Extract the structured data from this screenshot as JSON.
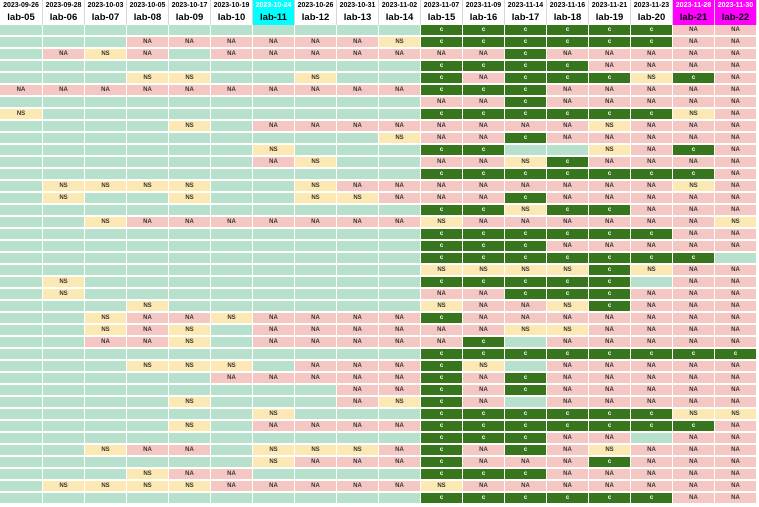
{
  "colors": {
    "empty": "#b7e1cd",
    "NA": "#f4c7c3",
    "NS": "#fce8b2",
    "complete": "#38761d",
    "header_highlight_cyan": "#00ffff",
    "header_highlight_magenta": "#ff00ff"
  },
  "columns": [
    {
      "date": "2023-09-26",
      "lab": "lab-05",
      "highlight": ""
    },
    {
      "date": "2023-09-28",
      "lab": "lab-06",
      "highlight": ""
    },
    {
      "date": "2023-10-03",
      "lab": "lab-07",
      "highlight": ""
    },
    {
      "date": "2023-10-05",
      "lab": "lab-08",
      "highlight": ""
    },
    {
      "date": "2023-10-17",
      "lab": "lab-09",
      "highlight": ""
    },
    {
      "date": "2023-10-19",
      "lab": "lab-10",
      "highlight": ""
    },
    {
      "date": "2023-10-24",
      "lab": "lab-11",
      "highlight": "cyan"
    },
    {
      "date": "2023-10-26",
      "lab": "lab-12",
      "highlight": ""
    },
    {
      "date": "2023-10-31",
      "lab": "lab-13",
      "highlight": ""
    },
    {
      "date": "2023-11-02",
      "lab": "lab-14",
      "highlight": ""
    },
    {
      "date": "2023-11-07",
      "lab": "lab-15",
      "highlight": ""
    },
    {
      "date": "2023-11-09",
      "lab": "lab-16",
      "highlight": ""
    },
    {
      "date": "2023-11-14",
      "lab": "lab-17",
      "highlight": ""
    },
    {
      "date": "2023-11-16",
      "lab": "lab-18",
      "highlight": ""
    },
    {
      "date": "2023-11-21",
      "lab": "lab-19",
      "highlight": ""
    },
    {
      "date": "2023-11-23",
      "lab": "lab-20",
      "highlight": ""
    },
    {
      "date": "2023-11-28",
      "lab": "lab-21",
      "highlight": "magenta"
    },
    {
      "date": "2023-11-30",
      "lab": "lab-22",
      "highlight": "magenta"
    }
  ],
  "rows": [
    [
      "",
      "",
      "",
      "",
      "",
      "",
      "",
      "",
      "",
      "",
      "c",
      "c",
      "c",
      "c",
      "c",
      "c",
      "NA",
      "NA"
    ],
    [
      "",
      "",
      "",
      "NA",
      "NA",
      "NA",
      "NA",
      "NA",
      "NA",
      "NS",
      "c",
      "c",
      "c",
      "c",
      "c",
      "c",
      "NA",
      "NA"
    ],
    [
      "",
      "NA",
      "NS",
      "NA",
      "",
      "NA",
      "NA",
      "NA",
      "NA",
      "NA",
      "NA",
      "NA",
      "c",
      "NA",
      "NA",
      "NA",
      "NA",
      "NA"
    ],
    [
      "",
      "",
      "",
      "",
      "",
      "",
      "",
      "",
      "",
      "",
      "c",
      "c",
      "c",
      "c",
      "NA",
      "NA",
      "NA",
      "NA"
    ],
    [
      "",
      "",
      "",
      "NS",
      "NS",
      "",
      "",
      "NS",
      "",
      "",
      "c",
      "NA",
      "c",
      "c",
      "c",
      "NS",
      "c",
      "NA"
    ],
    [
      "NA",
      "NA",
      "NA",
      "NA",
      "NA",
      "NA",
      "NA",
      "NA",
      "NA",
      "NA",
      "c",
      "c",
      "c",
      "NA",
      "NA",
      "NA",
      "NA",
      "NA"
    ],
    [
      "",
      "",
      "",
      "",
      "",
      "",
      "",
      "",
      "",
      "",
      "NA",
      "NA",
      "c",
      "NA",
      "NA",
      "NA",
      "NA",
      "NA"
    ],
    [
      "NS",
      "",
      "",
      "",
      "",
      "",
      "",
      "",
      "",
      "",
      "c",
      "c",
      "c",
      "c",
      "c",
      "c",
      "NS",
      "NA"
    ],
    [
      "",
      "",
      "",
      "",
      "NS",
      "",
      "NA",
      "NA",
      "NA",
      "NA",
      "NA",
      "NA",
      "NA",
      "NA",
      "NS",
      "NA",
      "NA",
      "NA"
    ],
    [
      "",
      "",
      "",
      "",
      "",
      "",
      "",
      "",
      "",
      "NS",
      "NA",
      "NA",
      "c",
      "NA",
      "NA",
      "NA",
      "NA",
      "NA"
    ],
    [
      "",
      "",
      "",
      "",
      "",
      "",
      "NS",
      "",
      "",
      "",
      "c",
      "c",
      "",
      "",
      "NS",
      "NA",
      "c",
      "NA"
    ],
    [
      "",
      "",
      "",
      "",
      "",
      "",
      "NA",
      "NS",
      "",
      "",
      "NA",
      "NA",
      "NS",
      "c",
      "NA",
      "NA",
      "NA",
      "NA"
    ],
    [
      "",
      "",
      "",
      "",
      "",
      "",
      "",
      "",
      "",
      "",
      "c",
      "c",
      "c",
      "c",
      "c",
      "c",
      "c",
      "NA"
    ],
    [
      "",
      "NS",
      "NS",
      "NS",
      "NS",
      "",
      "",
      "NS",
      "NA",
      "NA",
      "NA",
      "NA",
      "NA",
      "NA",
      "NA",
      "NA",
      "NS",
      "NA"
    ],
    [
      "",
      "NS",
      "",
      "",
      "NS",
      "",
      "",
      "NS",
      "NS",
      "NA",
      "NA",
      "NA",
      "c",
      "NA",
      "NA",
      "NA",
      "NA",
      "NA"
    ],
    [
      "",
      "",
      "",
      "",
      "",
      "",
      "",
      "",
      "",
      "",
      "c",
      "c",
      "NS",
      "c",
      "c",
      "NA",
      "NA",
      "NA"
    ],
    [
      "",
      "",
      "NS",
      "NA",
      "NA",
      "NA",
      "NA",
      "NA",
      "NA",
      "NA",
      "NS",
      "NA",
      "NA",
      "NA",
      "NA",
      "NA",
      "NA",
      "NS"
    ],
    [
      "",
      "",
      "",
      "",
      "",
      "",
      "",
      "",
      "",
      "",
      "c",
      "c",
      "c",
      "c",
      "c",
      "c",
      "NA",
      "NA"
    ],
    [
      "",
      "",
      "",
      "",
      "",
      "",
      "",
      "",
      "",
      "",
      "c",
      "c",
      "c",
      "NA",
      "NA",
      "NA",
      "NA",
      "NA"
    ],
    [
      "",
      "",
      "",
      "",
      "",
      "",
      "",
      "",
      "",
      "",
      "c",
      "c",
      "c",
      "c",
      "c",
      "c",
      "c",
      ""
    ],
    [
      "",
      "",
      "",
      "",
      "",
      "",
      "",
      "",
      "",
      "",
      "NS",
      "NS",
      "NS",
      "NS",
      "c",
      "NS",
      "NA",
      "NA"
    ],
    [
      "",
      "NS",
      "",
      "",
      "",
      "",
      "",
      "",
      "",
      "",
      "c",
      "c",
      "c",
      "c",
      "c",
      "",
      "NA",
      "NA"
    ],
    [
      "",
      "NS",
      "",
      "",
      "",
      "",
      "",
      "",
      "",
      "",
      "NA",
      "NA",
      "c",
      "c",
      "c",
      "NA",
      "NA",
      "NA"
    ],
    [
      "",
      "",
      "",
      "NS",
      "",
      "",
      "",
      "",
      "",
      "",
      "NS",
      "NA",
      "NA",
      "NS",
      "c",
      "NA",
      "NA",
      "NA"
    ],
    [
      "",
      "",
      "NS",
      "NA",
      "NA",
      "NS",
      "NA",
      "NA",
      "NA",
      "NA",
      "c",
      "NA",
      "NA",
      "NA",
      "NA",
      "NA",
      "NA",
      "NA"
    ],
    [
      "",
      "",
      "NS",
      "NA",
      "NS",
      "",
      "NA",
      "NA",
      "NA",
      "NA",
      "NA",
      "NA",
      "NS",
      "NS",
      "NA",
      "NA",
      "NA",
      "NA"
    ],
    [
      "",
      "",
      "NA",
      "NA",
      "NS",
      "",
      "NA",
      "NA",
      "NA",
      "NA",
      "NA",
      "c",
      "",
      "NA",
      "NA",
      "NA",
      "NA",
      "NA"
    ],
    [
      "",
      "",
      "",
      "",
      "",
      "",
      "",
      "",
      "",
      "",
      "c",
      "c",
      "c",
      "c",
      "c",
      "c",
      "c",
      "c"
    ],
    [
      "",
      "",
      "",
      "NS",
      "NS",
      "NS",
      "",
      "NA",
      "NA",
      "NA",
      "c",
      "NS",
      "",
      "NA",
      "NA",
      "NA",
      "NA",
      "NA"
    ],
    [
      "",
      "",
      "",
      "",
      "",
      "NA",
      "NA",
      "NA",
      "NA",
      "NA",
      "c",
      "NA",
      "c",
      "NA",
      "NA",
      "NA",
      "NA",
      "NA"
    ],
    [
      "",
      "",
      "",
      "",
      "",
      "",
      "",
      "",
      "NA",
      "NA",
      "c",
      "NA",
      "c",
      "NA",
      "NA",
      "NA",
      "NA",
      "NA"
    ],
    [
      "",
      "",
      "",
      "",
      "NS",
      "",
      "",
      "",
      "NA",
      "NS",
      "c",
      "NA",
      "",
      "NA",
      "NA",
      "NA",
      "NA",
      "NA"
    ],
    [
      "",
      "",
      "",
      "",
      "",
      "",
      "NS",
      "",
      "",
      "",
      "c",
      "c",
      "c",
      "c",
      "c",
      "c",
      "NS",
      "NS"
    ],
    [
      "",
      "",
      "",
      "",
      "NS",
      "",
      "NA",
      "NA",
      "NA",
      "NA",
      "c",
      "c",
      "c",
      "c",
      "c",
      "c",
      "c",
      "NA"
    ],
    [
      "",
      "",
      "",
      "",
      "",
      "",
      "",
      "",
      "",
      "",
      "c",
      "c",
      "c",
      "NA",
      "NA",
      "",
      "NA",
      "NA"
    ],
    [
      "",
      "",
      "NS",
      "NA",
      "NA",
      "",
      "NS",
      "NS",
      "NS",
      "NA",
      "c",
      "NA",
      "c",
      "NA",
      "NS",
      "NA",
      "NA",
      "NA"
    ],
    [
      "",
      "",
      "",
      "",
      "",
      "",
      "NS",
      "NA",
      "NA",
      "NA",
      "c",
      "NA",
      "NA",
      "NA",
      "c",
      "NA",
      "NA",
      "NA"
    ],
    [
      "",
      "",
      "",
      "NS",
      "NA",
      "NA",
      "",
      "",
      "",
      "",
      "c",
      "c",
      "c",
      "NA",
      "NA",
      "NA",
      "NA",
      "NA"
    ],
    [
      "",
      "NS",
      "NS",
      "NS",
      "NS",
      "NA",
      "NA",
      "NA",
      "NA",
      "NA",
      "NS",
      "NA",
      "NA",
      "NA",
      "NA",
      "NA",
      "NA",
      "NA"
    ],
    [
      "",
      "",
      "",
      "",
      "",
      "",
      "",
      "",
      "",
      "",
      "c",
      "c",
      "c",
      "c",
      "c",
      "c",
      "NA",
      "NA"
    ]
  ]
}
